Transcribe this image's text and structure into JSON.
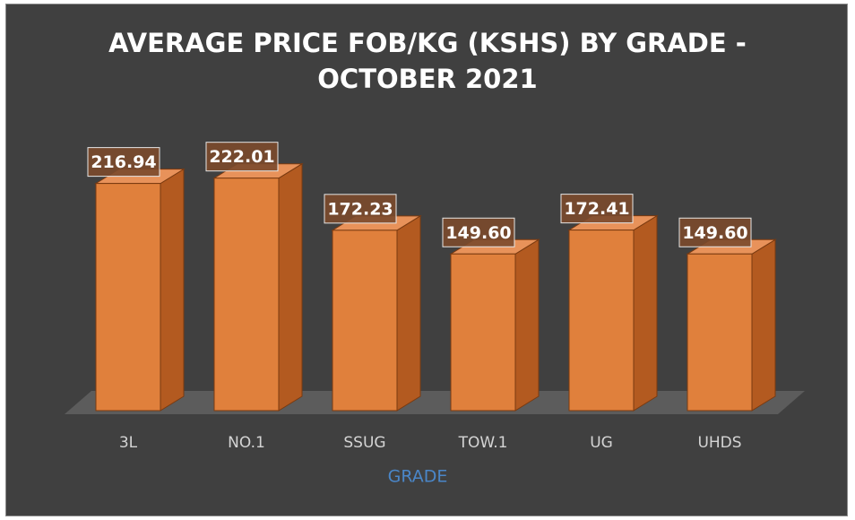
{
  "chart_data": {
    "type": "bar3d",
    "title": "AVERAGE PRICE FOB/KG (KSHS) BY GRADE - OCTOBER 2021",
    "x_label": "GRADE",
    "categories": [
      "3L",
      "NO.1",
      "SSUG",
      "TOW.1",
      "UG",
      "UHDS"
    ],
    "values": [
      216.94,
      222.01,
      172.23,
      149.6,
      172.41,
      149.6
    ],
    "value_labels": [
      "216.94",
      "222.01",
      "172.23",
      "149.60",
      "172.41",
      "149.60"
    ],
    "color": "#e0803c",
    "ylim": [
      0,
      250
    ]
  }
}
